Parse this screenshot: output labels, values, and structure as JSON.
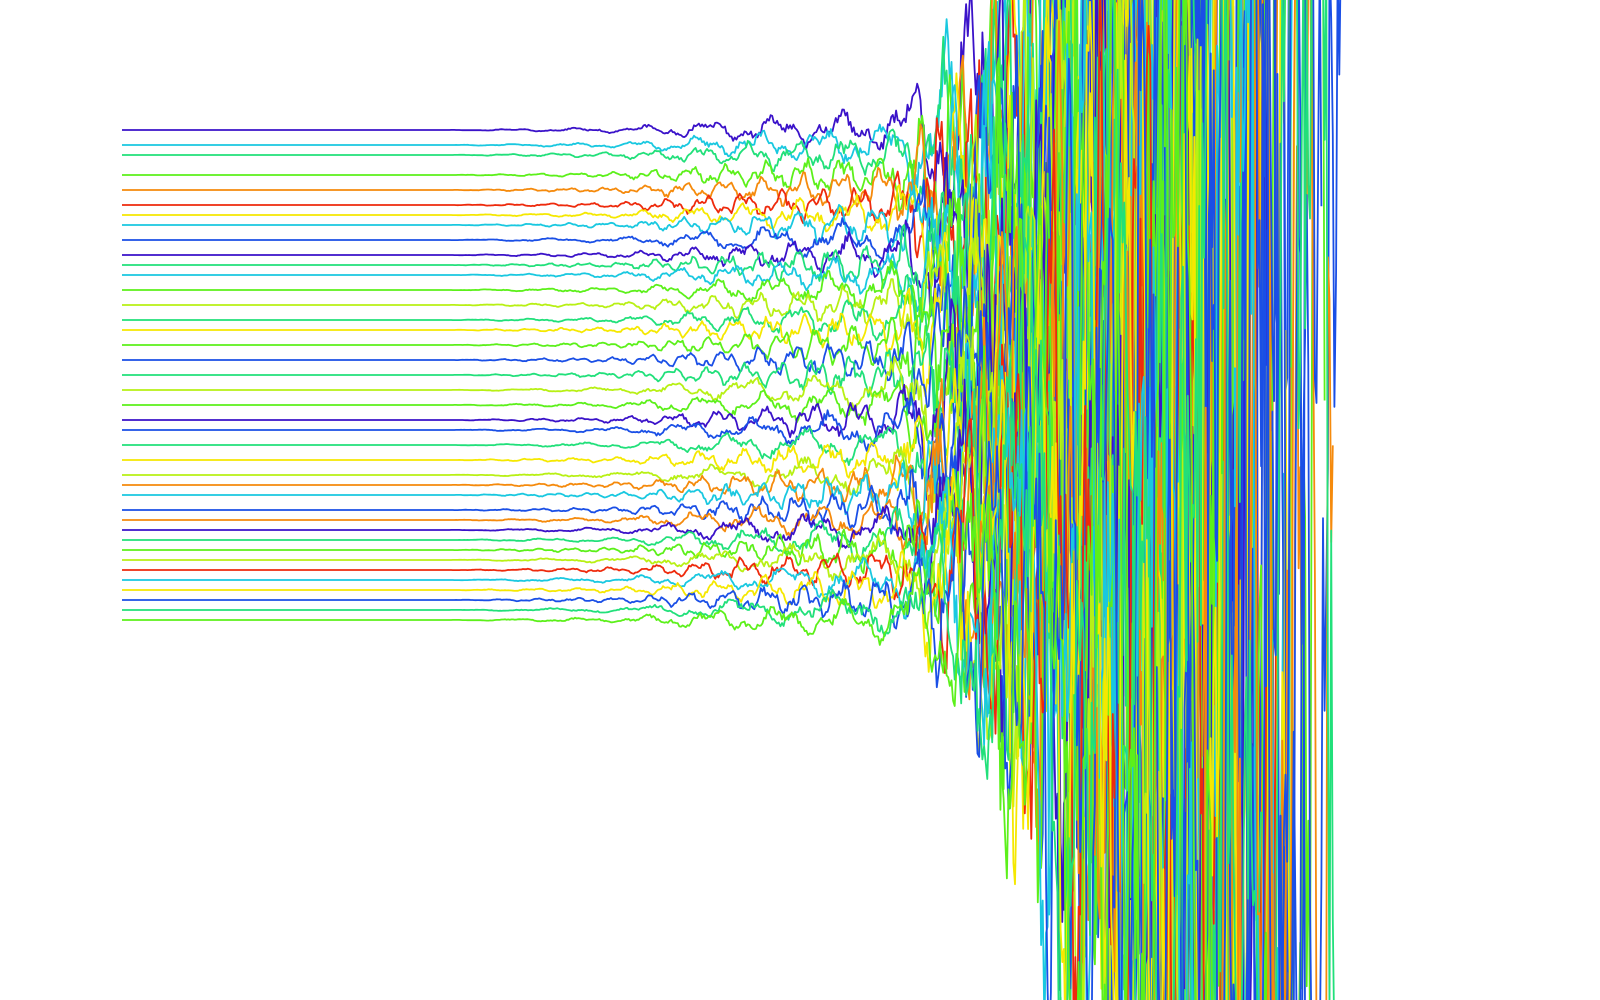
{
  "chart_data": {
    "type": "line",
    "title": "",
    "xlabel": "",
    "ylabel": "",
    "axes_visible": false,
    "grid": false,
    "legend": "none",
    "background": "#ffffff",
    "xlim": [
      0,
      100
    ],
    "ylim": [
      -100,
      100
    ],
    "colormap": [
      "#3a12c9",
      "#1a4fe6",
      "#19c8e0",
      "#21e07a",
      "#5cf01a",
      "#b8f014",
      "#f5e800",
      "#f58a0c",
      "#ee2a0c"
    ],
    "series_count": 40,
    "baseline_start_x": 0,
    "flat_until_x": 24,
    "wiggle_start_x": 37,
    "divergence_start_x": 56,
    "end_x_range": [
      78,
      90
    ],
    "series": [
      {
        "color": "#3a12c9",
        "y0": 74
      },
      {
        "color": "#19c8e0",
        "y0": 71
      },
      {
        "color": "#21e07a",
        "y0": 69
      },
      {
        "color": "#5cf01a",
        "y0": 65
      },
      {
        "color": "#f58a0c",
        "y0": 62
      },
      {
        "color": "#ee2a0c",
        "y0": 59
      },
      {
        "color": "#f5e800",
        "y0": 57
      },
      {
        "color": "#19c8e0",
        "y0": 55
      },
      {
        "color": "#1a4fe6",
        "y0": 52
      },
      {
        "color": "#3a12c9",
        "y0": 49
      },
      {
        "color": "#21e07a",
        "y0": 47
      },
      {
        "color": "#19c8e0",
        "y0": 45
      },
      {
        "color": "#5cf01a",
        "y0": 42
      },
      {
        "color": "#b8f014",
        "y0": 39
      },
      {
        "color": "#21e07a",
        "y0": 36
      },
      {
        "color": "#f5e800",
        "y0": 34
      },
      {
        "color": "#5cf01a",
        "y0": 31
      },
      {
        "color": "#1a4fe6",
        "y0": 28
      },
      {
        "color": "#21e07a",
        "y0": 25
      },
      {
        "color": "#b8f014",
        "y0": 22
      },
      {
        "color": "#5cf01a",
        "y0": 19
      },
      {
        "color": "#3a12c9",
        "y0": 16
      },
      {
        "color": "#1a4fe6",
        "y0": 14
      },
      {
        "color": "#21e07a",
        "y0": 11
      },
      {
        "color": "#f5e800",
        "y0": 8
      },
      {
        "color": "#b8f014",
        "y0": 5
      },
      {
        "color": "#f58a0c",
        "y0": 3
      },
      {
        "color": "#19c8e0",
        "y0": 1
      },
      {
        "color": "#1a4fe6",
        "y0": -2
      },
      {
        "color": "#f58a0c",
        "y0": -4
      },
      {
        "color": "#3a12c9",
        "y0": -6
      },
      {
        "color": "#21e07a",
        "y0": -8
      },
      {
        "color": "#5cf01a",
        "y0": -10
      },
      {
        "color": "#b8f014",
        "y0": -12
      },
      {
        "color": "#ee2a0c",
        "y0": -14
      },
      {
        "color": "#19c8e0",
        "y0": -16
      },
      {
        "color": "#f5e800",
        "y0": -18
      },
      {
        "color": "#1a4fe6",
        "y0": -20
      },
      {
        "color": "#21e07a",
        "y0": -22
      },
      {
        "color": "#5cf01a",
        "y0": -24
      }
    ]
  }
}
